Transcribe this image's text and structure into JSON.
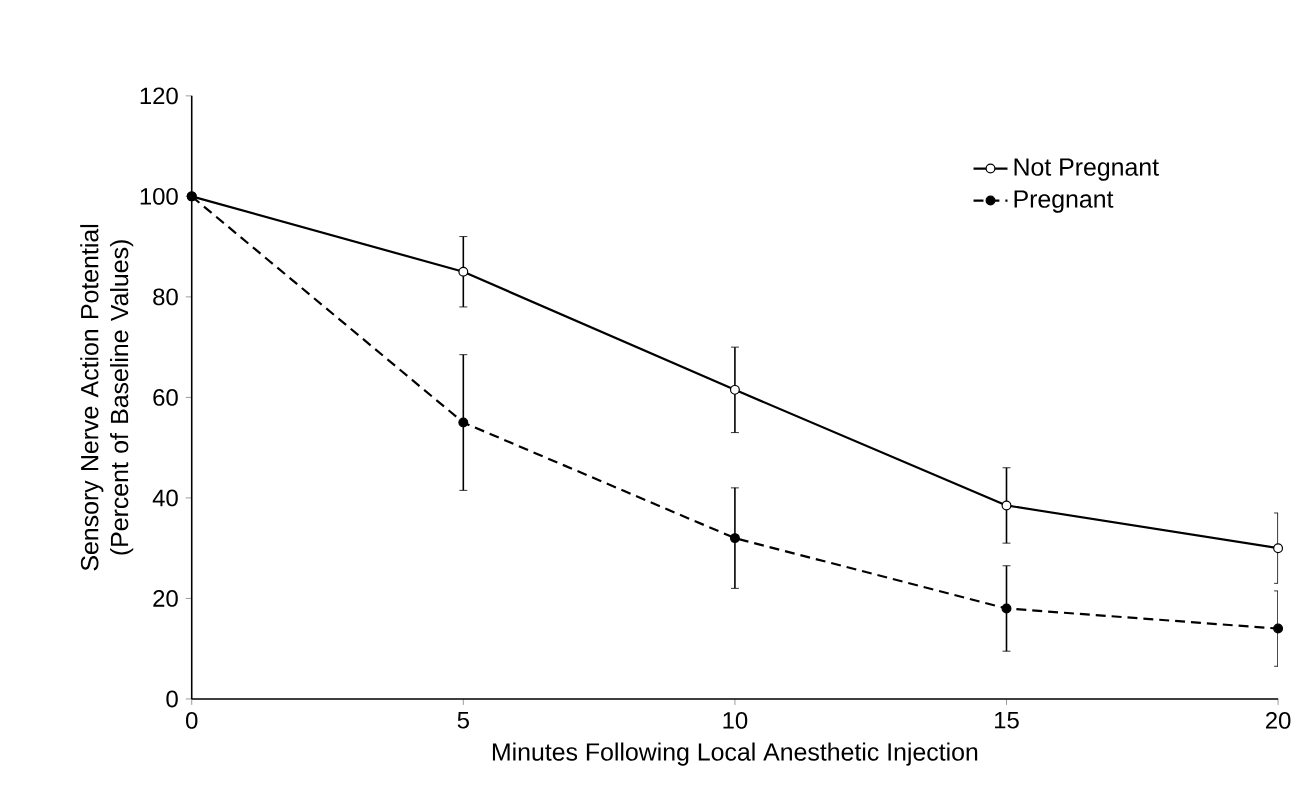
{
  "chart_data": {
    "type": "line",
    "xlabel": "Minutes Following Local Anesthetic Injection",
    "ylabel": "Sensory Nerve Action Potential (Percent of Baseline Values)",
    "x": [
      0,
      5,
      10,
      15,
      20
    ],
    "series": [
      {
        "name": "Not Pregnant",
        "color": "#000000",
        "values": [
          100,
          85,
          61.5,
          38.5,
          30
        ],
        "errors": [
          null,
          7,
          8.5,
          7.5,
          7
        ],
        "line_style": "solid"
      },
      {
        "name": "Pregnant",
        "color": "#000000",
        "values": [
          100,
          55,
          32,
          18,
          14
        ],
        "errors": [
          null,
          13.5,
          10,
          8.5,
          7.5
        ],
        "line_style": "dashed"
      }
    ],
    "xlim": [
      0,
      20
    ],
    "xticks": [
      0,
      5,
      10,
      15,
      20
    ],
    "ylim": [
      0,
      120
    ],
    "yticks": [
      0,
      20,
      40,
      60,
      80,
      100,
      120
    ],
    "marker": "circle",
    "legend": "top right",
    "grid": false
  }
}
